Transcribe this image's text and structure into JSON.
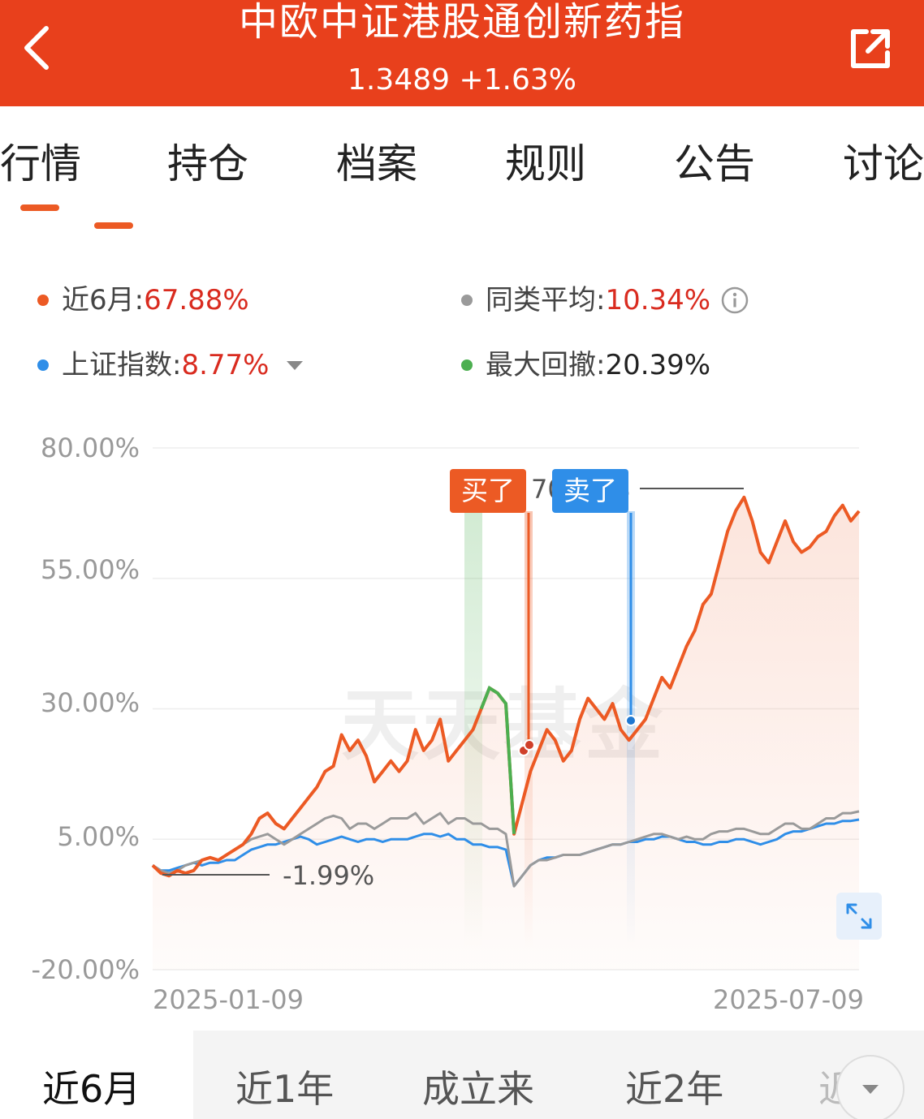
{
  "header": {
    "title": "中欧中证港股通创新药指",
    "nav_line": "1.3489 +1.63%"
  },
  "tabs": [
    {
      "label": "行情",
      "active": true
    },
    {
      "label": "持仓"
    },
    {
      "label": "档案"
    },
    {
      "label": "规则"
    },
    {
      "label": "公告"
    },
    {
      "label": "讨论"
    }
  ],
  "legend": {
    "fund": {
      "label": "近6月:",
      "value": "67.88%",
      "color": "#ec5a24"
    },
    "peer": {
      "label": "同类平均:",
      "value": "10.34%",
      "color": "#9a9a9a"
    },
    "index": {
      "label": "上证指数:",
      "value": "8.77%",
      "color": "#2f8ee8"
    },
    "drawdown": {
      "label": "最大回撤:",
      "value": "20.39%",
      "color": "#4caf50"
    }
  },
  "chart": {
    "buy_label": "买了",
    "sell_label": "卖了",
    "peak_label": "70.54%",
    "low_label": "-1.99%",
    "watermark": "天天基金"
  },
  "chart_data": {
    "type": "line",
    "yticks": [
      "80.00%",
      "55.00%",
      "30.00%",
      "5.00%",
      "-20.00%"
    ],
    "ylim": [
      -20,
      80
    ],
    "x_start": "2025-01-09",
    "x_end": "2025-07-09",
    "series": [
      {
        "name": "近6月",
        "color": "#ec5a24",
        "values": [
          0,
          -1.5,
          -2,
          -1,
          -1.5,
          -1,
          1,
          1.5,
          1,
          2,
          3,
          4,
          6,
          9,
          10,
          8,
          7,
          9,
          11,
          13,
          15,
          18,
          19,
          25,
          22,
          24,
          21,
          16,
          18,
          20,
          18,
          20,
          26,
          22,
          24,
          28,
          20,
          22,
          24,
          26,
          30,
          34,
          33,
          31,
          6,
          12,
          18,
          22,
          26,
          24,
          20,
          22,
          28,
          32,
          30,
          28,
          31,
          26,
          24,
          26,
          28,
          32,
          36,
          34,
          38,
          42,
          45,
          50,
          52,
          58,
          64,
          68,
          70.54,
          66,
          60,
          58,
          62,
          66,
          62,
          60,
          61,
          63,
          64,
          67,
          69,
          66,
          67.88
        ]
      },
      {
        "name": "同类平均",
        "color": "#9a9a9a",
        "values": [
          0,
          -1,
          -1.5,
          -1,
          0,
          0.5,
          1,
          1.5,
          1,
          2,
          3,
          4,
          5,
          5.5,
          6,
          5,
          4,
          5,
          6,
          7,
          8,
          9,
          9.5,
          9,
          7,
          8,
          8,
          7,
          8,
          9,
          9,
          9,
          10,
          8,
          9,
          10,
          8,
          9,
          9,
          8,
          8,
          7,
          7,
          6,
          -4,
          -2,
          0,
          1,
          1,
          1.5,
          2,
          2,
          2,
          2.5,
          3,
          3.5,
          4,
          4,
          4.5,
          5,
          5.5,
          6,
          6,
          5.5,
          5,
          5.5,
          5,
          5,
          6,
          6.5,
          6.5,
          7,
          7,
          6.5,
          6,
          6,
          7,
          8,
          8,
          7,
          7,
          8,
          9,
          9,
          10,
          10,
          10.34
        ]
      },
      {
        "name": "上证指数",
        "color": "#2f8ee8",
        "values": [
          0,
          -1,
          -1,
          -0.5,
          0,
          0.5,
          0,
          0.5,
          0.5,
          1,
          1,
          2,
          3,
          3.5,
          4,
          4,
          4.5,
          5,
          5.5,
          5,
          4,
          4.5,
          5,
          5.5,
          5,
          4.5,
          5,
          5,
          4.5,
          5,
          5,
          5,
          5.5,
          6,
          6,
          5.5,
          6,
          5,
          5,
          4,
          4,
          3.5,
          3.5,
          3,
          -4,
          -2,
          0,
          1,
          1.5,
          1.5,
          2,
          2,
          2,
          2.5,
          3,
          3.5,
          4,
          4,
          4.5,
          4.5,
          5,
          5,
          5.5,
          5.5,
          5,
          4.5,
          4.5,
          4,
          4,
          4.5,
          4.5,
          5,
          5,
          4.5,
          4,
          4.5,
          5,
          6,
          6.5,
          6.5,
          7,
          7.5,
          8,
          8,
          8.5,
          8.5,
          8.77
        ]
      }
    ]
  },
  "periods": [
    {
      "label": "近6月",
      "active": true
    },
    {
      "label": "近1年"
    },
    {
      "label": "成立来"
    },
    {
      "label": "近2年"
    },
    {
      "label": "近"
    }
  ]
}
